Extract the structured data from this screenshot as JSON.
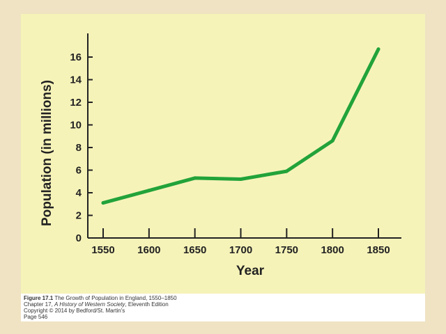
{
  "chart_data": {
    "type": "line",
    "title": "",
    "xlabel": "Year",
    "ylabel": "Population (in millions)",
    "x": [
      1550,
      1600,
      1650,
      1700,
      1750,
      1800,
      1850
    ],
    "series": [
      {
        "values": [
          3.1,
          4.2,
          5.3,
          5.2,
          5.9,
          8.6,
          16.7
        ]
      }
    ],
    "x_ticks": [
      "1550",
      "1600",
      "1650",
      "1700",
      "1750",
      "1800",
      "1850"
    ],
    "y_ticks": [
      "0",
      "2",
      "4",
      "6",
      "8",
      "10",
      "12",
      "14",
      "16"
    ],
    "xlim": [
      1550,
      1850
    ],
    "ylim": [
      0,
      16
    ],
    "grid": false,
    "line_color": "#22a33a"
  },
  "caption": {
    "figure_label": "Figure 17.1",
    "figure_title": "The Growth of Population in England, 1550–1850",
    "chapter_prefix": "Chapter 17,",
    "book_title": "A History of Western Society",
    "edition": ", Eleventh Edition",
    "copyright": "Copyright © 2014 by Bedford/St. Martin's",
    "page": "Page 546"
  }
}
